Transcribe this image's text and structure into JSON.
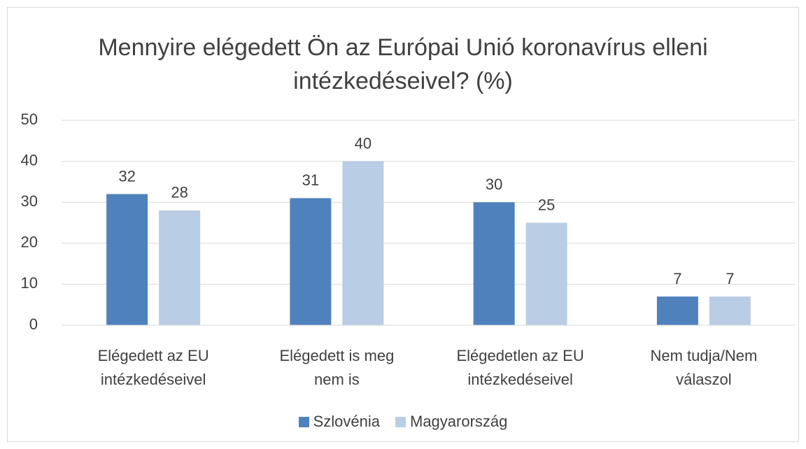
{
  "chart_data": {
    "type": "bar",
    "title": "Mennyire elégedett Ön az Európai Unió koronavírus elleni intézkedéseivel? (%)",
    "categories": [
      "Elégedett az EU intézkedéseivel",
      "Elégedett is meg nem is",
      "Elégedetlen az EU intézkedéseivel",
      "Nem tudja/Nem válaszol"
    ],
    "series": [
      {
        "name": "Szlovénia",
        "color": "#4f81bd",
        "values": [
          32,
          31,
          30,
          7
        ]
      },
      {
        "name": "Magyarország",
        "color": "#b9cde5",
        "values": [
          28,
          40,
          25,
          7
        ]
      }
    ],
    "ylim": [
      0,
      50
    ],
    "yticks": [
      0,
      10,
      20,
      30,
      40,
      50
    ],
    "grid": true,
    "legend": "bottom"
  }
}
